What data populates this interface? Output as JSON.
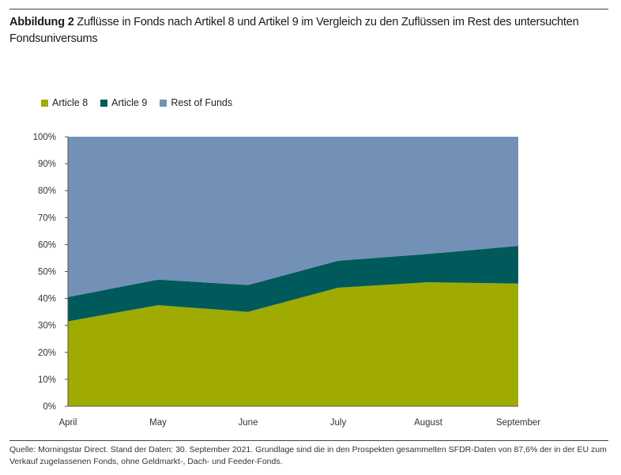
{
  "figure": {
    "title_prefix": "Abbildung 2",
    "title_text": "Zuflüsse in Fonds nach Artikel 8 und Artikel 9 im Vergleich zu den Zuflüssen im Rest des untersuchten Fondsuniversums",
    "source": "Quelle: Morningstar Direct. Stand der Daten: 30. September 2021. Grundlage sind die in den Prospekten gesammelten SFDR-Daten von 87,6% der in der EU zum Verkauf zugelassenen Fonds, ohne Geldmarkt-, Dach- und Feeder-Fonds."
  },
  "chart_data": {
    "type": "area",
    "stacked": true,
    "categories": [
      "April",
      "May",
      "June",
      "July",
      "August",
      "September"
    ],
    "series": [
      {
        "name": "Article 8",
        "color": "#9fab00",
        "values": [
          31.5,
          37.5,
          35,
          44,
          46,
          45.5
        ]
      },
      {
        "name": "Article 9",
        "color": "#005a5b",
        "values": [
          9,
          9.5,
          10,
          10,
          10.5,
          14
        ]
      },
      {
        "name": "Rest of Funds",
        "color": "#7391b6",
        "values": [
          59.5,
          53,
          55,
          46,
          43.5,
          40.5
        ]
      }
    ],
    "yticks": [
      "0%",
      "10%",
      "20%",
      "30%",
      "40%",
      "50%",
      "60%",
      "70%",
      "80%",
      "90%",
      "100%"
    ],
    "ylim": [
      0,
      100
    ],
    "legend_position": "top-left",
    "grid": false
  }
}
